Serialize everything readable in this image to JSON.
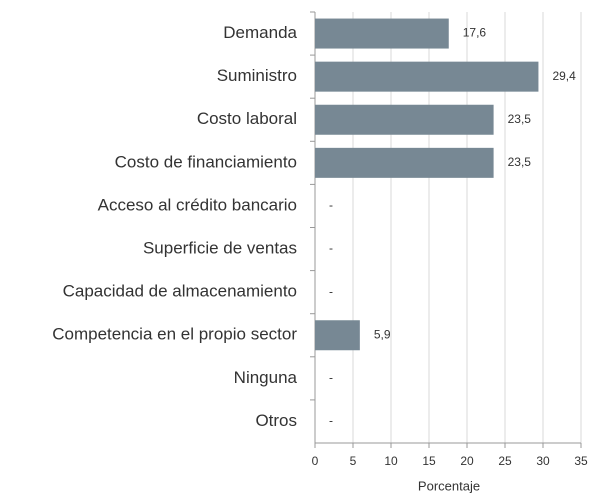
{
  "chart_data": {
    "type": "hbar",
    "categories": [
      "Demanda",
      "Suministro",
      "Costo laboral",
      "Costo de financiamiento",
      "Acceso al crédito bancario",
      "Superficie de ventas",
      "Capacidad de almacenamiento",
      "Competencia en el propio sector",
      "Ninguna",
      "Otros"
    ],
    "values": [
      17.6,
      29.4,
      23.5,
      23.5,
      null,
      null,
      null,
      5.9,
      null,
      null
    ],
    "value_labels": [
      "17,6",
      "29,4",
      "23,5",
      "23,5",
      "-",
      "-",
      "-",
      "5,9",
      "-",
      "-"
    ],
    "color": "#778894",
    "xlim": [
      0,
      35
    ],
    "xticks": [
      0,
      5,
      10,
      15,
      20,
      25,
      30,
      35
    ],
    "xlabel": "Porcentaje",
    "grid": true
  }
}
